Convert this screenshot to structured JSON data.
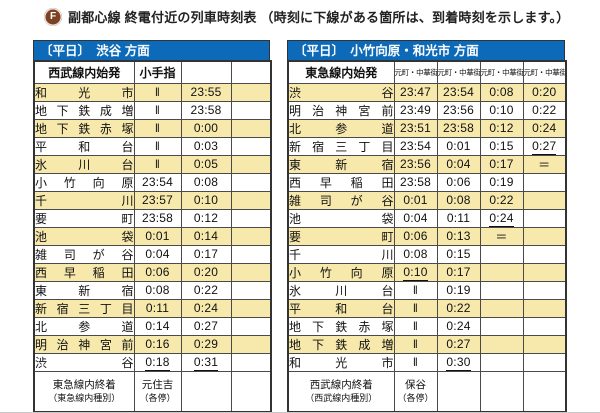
{
  "page": {
    "title": "副都心線 終電付近の列車時刻表 （時刻に下線がある箇所は、到着時刻を示します。）",
    "line_icon_letter": "F"
  },
  "colors": {
    "direction_bar_blue": "#0d6ab8",
    "row_highlight_yellow": "#f7e9ac",
    "line_symbol_brown": "#7d4123",
    "grid_border": "#4a4a4a"
  },
  "legend": {
    "underline_meaning": "時刻に下線がある箇所は、到着時刻を示します。",
    "double_bar_symbol": "‖",
    "skip_symbol": "＝"
  },
  "left_table": {
    "direction": "〔平日〕　渋谷 方面",
    "origin_header": "西武線内始発",
    "column_headers": [
      "小手指",
      "",
      ""
    ],
    "header_font_small": false,
    "rows": [
      {
        "station": "和光市",
        "times": [
          "‖",
          "23:55",
          ""
        ]
      },
      {
        "station": "地下鉄成増",
        "times": [
          "‖",
          "23:58",
          ""
        ]
      },
      {
        "station": "地下鉄赤塚",
        "times": [
          "‖",
          "0:00",
          ""
        ]
      },
      {
        "station": "平和台",
        "times": [
          "‖",
          "0:03",
          ""
        ]
      },
      {
        "station": "氷川台",
        "times": [
          "‖",
          "0:05",
          ""
        ]
      },
      {
        "station": "小竹向原",
        "times": [
          "23:54",
          "0:08",
          ""
        ]
      },
      {
        "station": "千川",
        "times": [
          "23:57",
          "0:10",
          ""
        ]
      },
      {
        "station": "要町",
        "times": [
          "23:58",
          "0:12",
          ""
        ]
      },
      {
        "station": "池袋",
        "times": [
          "0:01",
          "0:14",
          ""
        ]
      },
      {
        "station": "雑司が谷",
        "times": [
          "0:04",
          "0:17",
          ""
        ]
      },
      {
        "station": "西早稲田",
        "times": [
          "0:06",
          "0:20",
          ""
        ]
      },
      {
        "station": "東新宿",
        "times": [
          "0:08",
          "0:22",
          ""
        ]
      },
      {
        "station": "新宿三丁目",
        "times": [
          "0:11",
          "0:24",
          ""
        ]
      },
      {
        "station": "北参道",
        "times": [
          "0:14",
          "0:27",
          ""
        ]
      },
      {
        "station": "明治神宮前",
        "times": [
          "0:16",
          "0:29",
          ""
        ]
      },
      {
        "station": "渋谷",
        "times": [
          {
            "v": "0:18",
            "u": true
          },
          {
            "v": "0:31",
            "u": true
          },
          ""
        ]
      }
    ],
    "footer": {
      "label_main": "東急線内終着",
      "label_sub": "（東急線内種別）",
      "cells": [
        {
          "main": "元住吉",
          "sub": "（各停）"
        },
        {
          "main": "",
          "sub": ""
        },
        {
          "main": "",
          "sub": ""
        }
      ]
    }
  },
  "right_table": {
    "direction": "〔平日〕　小竹向原・和光市 方面",
    "origin_header": "東急線内始発",
    "column_headers": [
      "元町・中華街",
      "元町・中華街",
      "元町・中華街",
      "元町・中華街"
    ],
    "header_font_small": true,
    "rows": [
      {
        "station": "渋谷",
        "times": [
          "23:47",
          "23:54",
          "0:08",
          "0:20"
        ]
      },
      {
        "station": "明治神宮前",
        "times": [
          "23:49",
          "23:56",
          "0:10",
          "0:22"
        ]
      },
      {
        "station": "北参道",
        "times": [
          "23:51",
          "23:58",
          "0:12",
          "0:24"
        ]
      },
      {
        "station": "新宿三丁目",
        "times": [
          "23:54",
          "0:01",
          "0:15",
          {
            "v": "0:27",
            "u": true
          }
        ]
      },
      {
        "station": "東新宿",
        "times": [
          "23:56",
          "0:04",
          "0:17",
          "＝"
        ]
      },
      {
        "station": "西早稲田",
        "times": [
          "23:58",
          "0:06",
          "0:19",
          ""
        ]
      },
      {
        "station": "雑司が谷",
        "times": [
          "0:01",
          "0:08",
          "0:22",
          ""
        ]
      },
      {
        "station": "池袋",
        "times": [
          "0:04",
          "0:11",
          {
            "v": "0:24",
            "u": true
          },
          ""
        ]
      },
      {
        "station": "要町",
        "times": [
          "0:06",
          "0:13",
          "＝",
          ""
        ]
      },
      {
        "station": "千川",
        "times": [
          "0:08",
          "0:15",
          "",
          ""
        ]
      },
      {
        "station": "小竹向原",
        "times": [
          {
            "v": "0:10",
            "u": true
          },
          "0:17",
          "",
          ""
        ]
      },
      {
        "station": "氷川台",
        "times": [
          "‖",
          "0:19",
          "",
          ""
        ]
      },
      {
        "station": "平和台",
        "times": [
          "‖",
          "0:22",
          "",
          ""
        ]
      },
      {
        "station": "地下鉄赤塚",
        "times": [
          "‖",
          "0:24",
          "",
          ""
        ]
      },
      {
        "station": "地下鉄成増",
        "times": [
          "‖",
          "0:27",
          "",
          ""
        ]
      },
      {
        "station": "和光市",
        "times": [
          "‖",
          {
            "v": "0:30",
            "u": true
          },
          "",
          ""
        ]
      }
    ],
    "footer": {
      "label_main": "西武線内終着",
      "label_sub": "（西武線内種別）",
      "cells": [
        {
          "main": "保谷",
          "sub": "（各停）"
        },
        {
          "main": "",
          "sub": ""
        },
        {
          "main": "",
          "sub": ""
        },
        {
          "main": "",
          "sub": ""
        }
      ]
    }
  }
}
